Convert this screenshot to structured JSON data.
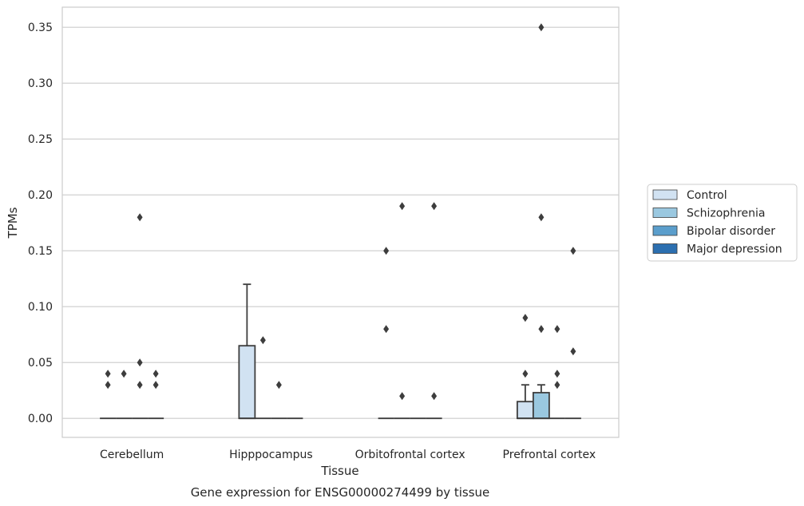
{
  "caption": "Gene expression for ENSG00000274499 by tissue",
  "chart_data": {
    "type": "box",
    "xlabel": "Tissue",
    "ylabel": "TPMs",
    "ylim": [
      -0.017,
      0.368
    ],
    "yticks": [
      "0.00",
      "0.05",
      "0.10",
      "0.15",
      "0.20",
      "0.25",
      "0.30",
      "0.35"
    ],
    "grid": "horizontal",
    "legend_position": "right",
    "categories": [
      "Cerebellum",
      "Hipppocampus",
      "Orbitofrontal cortex",
      "Prefrontal cortex"
    ],
    "series": [
      {
        "name": "Control",
        "color": "#d1e2f2"
      },
      {
        "name": "Schizophrenia",
        "color": "#9ac8e0"
      },
      {
        "name": "Bipolar disorder",
        "color": "#5b9ecc"
      },
      {
        "name": "Major depression",
        "color": "#2c6fb0"
      }
    ],
    "boxes": [
      {
        "category": 0,
        "series": 0,
        "q1": 0,
        "median": 0,
        "q3": 0,
        "whisker_low": 0,
        "whisker_high": 0,
        "outliers": [
          0.03,
          0.04
        ]
      },
      {
        "category": 0,
        "series": 1,
        "q1": 0,
        "median": 0,
        "q3": 0,
        "whisker_low": 0,
        "whisker_high": 0,
        "outliers": [
          0.04
        ]
      },
      {
        "category": 0,
        "series": 2,
        "q1": 0,
        "median": 0,
        "q3": 0,
        "whisker_low": 0,
        "whisker_high": 0,
        "outliers": [
          0.03,
          0.05,
          0.18
        ]
      },
      {
        "category": 0,
        "series": 3,
        "q1": 0,
        "median": 0,
        "q3": 0,
        "whisker_low": 0,
        "whisker_high": 0,
        "outliers": [
          0.03,
          0.04
        ]
      },
      {
        "category": 1,
        "series": 0,
        "q1": 0,
        "median": 0,
        "q3": 0.065,
        "whisker_low": 0,
        "whisker_high": 0.12,
        "outliers": []
      },
      {
        "category": 1,
        "series": 1,
        "q1": 0,
        "median": 0,
        "q3": 0,
        "whisker_low": 0,
        "whisker_high": 0,
        "outliers": [
          0.07
        ]
      },
      {
        "category": 1,
        "series": 2,
        "q1": 0,
        "median": 0,
        "q3": 0,
        "whisker_low": 0,
        "whisker_high": 0,
        "outliers": [
          0.03
        ]
      },
      {
        "category": 1,
        "series": 3,
        "q1": 0,
        "median": 0,
        "q3": 0,
        "whisker_low": 0,
        "whisker_high": 0,
        "outliers": []
      },
      {
        "category": 2,
        "series": 0,
        "q1": 0,
        "median": 0,
        "q3": 0,
        "whisker_low": 0,
        "whisker_high": 0,
        "outliers": [
          0.08,
          0.15
        ]
      },
      {
        "category": 2,
        "series": 1,
        "q1": 0,
        "median": 0,
        "q3": 0,
        "whisker_low": 0,
        "whisker_high": 0,
        "outliers": [
          0.02,
          0.19
        ]
      },
      {
        "category": 2,
        "series": 2,
        "q1": 0,
        "median": 0,
        "q3": 0,
        "whisker_low": 0,
        "whisker_high": 0,
        "outliers": []
      },
      {
        "category": 2,
        "series": 3,
        "q1": 0,
        "median": 0,
        "q3": 0,
        "whisker_low": 0,
        "whisker_high": 0,
        "outliers": [
          0.02,
          0.19
        ]
      },
      {
        "category": 3,
        "series": 0,
        "q1": 0,
        "median": 0,
        "q3": 0.015,
        "whisker_low": 0,
        "whisker_high": 0.03,
        "outliers": [
          0.04,
          0.09
        ]
      },
      {
        "category": 3,
        "series": 1,
        "q1": 0,
        "median": 0,
        "q3": 0.023,
        "whisker_low": 0,
        "whisker_high": 0.03,
        "outliers": [
          0.08,
          0.18,
          0.35
        ]
      },
      {
        "category": 3,
        "series": 2,
        "q1": 0,
        "median": 0,
        "q3": 0,
        "whisker_low": 0,
        "whisker_high": 0,
        "outliers": [
          0.03,
          0.04,
          0.08
        ]
      },
      {
        "category": 3,
        "series": 3,
        "q1": 0,
        "median": 0,
        "q3": 0,
        "whisker_low": 0,
        "whisker_high": 0,
        "outliers": [
          0.06,
          0.15
        ]
      }
    ]
  }
}
